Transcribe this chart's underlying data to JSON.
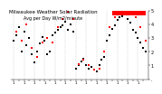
{
  "title": "Milwaukee Weather Solar Radiation",
  "subtitle": "Avg per Day W/m2/minute",
  "background": "#ffffff",
  "plot_bg": "#ffffff",
  "grid_color": "#aaaaaa",
  "line1_color": "#000000",
  "line2_color": "#ff0000",
  "ylim": [
    0,
    500
  ],
  "xlim": [
    0,
    53
  ],
  "black_x": [
    1,
    2,
    3,
    4,
    5,
    6,
    7,
    8,
    9,
    10,
    11,
    12,
    13,
    14,
    15,
    16,
    17,
    18,
    19,
    20,
    21,
    22,
    23,
    24,
    25,
    26,
    27,
    28,
    29,
    30,
    31,
    32,
    33,
    34,
    35,
    36,
    37,
    38,
    39,
    40,
    41,
    42,
    43,
    44,
    45,
    46,
    47,
    48,
    49,
    50,
    51,
    52
  ],
  "black_y": [
    280,
    320,
    380,
    200,
    350,
    250,
    300,
    180,
    120,
    200,
    260,
    310,
    280,
    180,
    200,
    320,
    340,
    360,
    380,
    390,
    420,
    360,
    400,
    350,
    80,
    100,
    130,
    150,
    100,
    80,
    90,
    70,
    60,
    100,
    140,
    160,
    280,
    320,
    370,
    390,
    430,
    450,
    460,
    470,
    440,
    410,
    360,
    340,
    300,
    270,
    230,
    200
  ],
  "red_x": [
    2,
    4,
    6,
    8,
    10,
    12,
    14,
    16,
    18,
    20,
    22,
    24,
    26,
    28,
    30,
    32,
    34,
    36,
    38,
    40,
    42,
    44,
    46,
    48,
    50,
    52
  ],
  "red_y": [
    350,
    280,
    400,
    230,
    160,
    270,
    300,
    270,
    380,
    440,
    490,
    440,
    110,
    140,
    100,
    70,
    80,
    200,
    380,
    450,
    490,
    500,
    490,
    450,
    380,
    280
  ],
  "vline_x": [
    1,
    5,
    9,
    13,
    17,
    21,
    25,
    29,
    33,
    37,
    41,
    45,
    49,
    53
  ],
  "highlight_x1": 39,
  "highlight_x2": 52,
  "highlight_ymin": 0.88,
  "highlight_ymax": 1.0,
  "marker_size": 1.8,
  "font_size": 4.0,
  "xtick_positions": [
    1,
    3,
    5,
    7,
    9,
    11,
    13,
    15,
    17,
    19,
    21,
    23,
    25,
    27,
    29,
    31,
    33,
    35,
    37,
    39,
    41,
    43,
    45,
    47,
    49,
    51
  ],
  "xtick_labels": [
    "1",
    "",
    "1",
    "",
    "1",
    "",
    "1",
    "",
    "1",
    "",
    "1",
    "",
    "1",
    "",
    "1",
    "",
    "1",
    "",
    "1",
    "",
    "1",
    "",
    "1",
    "",
    "1",
    ""
  ],
  "ytick_vals": [
    0,
    100,
    200,
    300,
    400,
    500
  ],
  "ytick_labels": [
    ".",
    "1",
    "2",
    "3",
    "4",
    "5"
  ]
}
